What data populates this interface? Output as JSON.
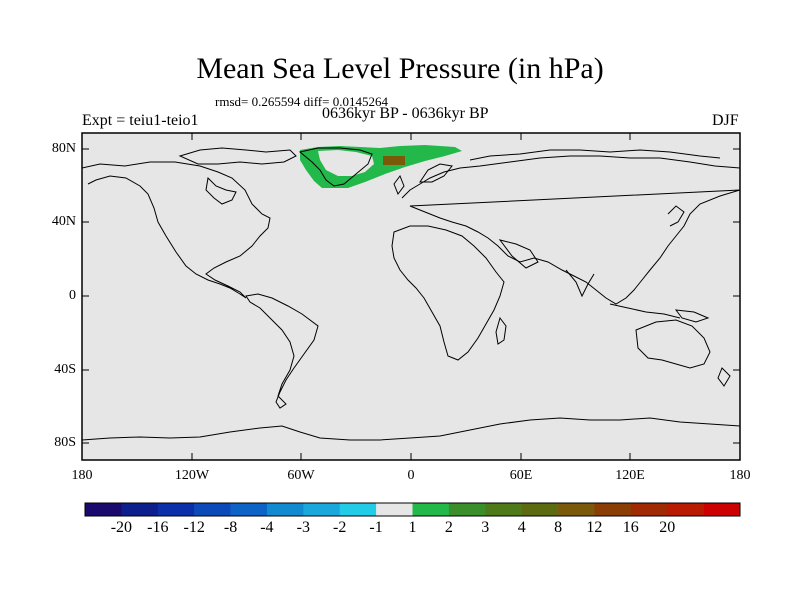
{
  "title": "Mean Sea Level Pressure (in hPa)",
  "stats": "rmsd= 0.265594 diff= 0.0145264",
  "expt": "Expt = teiu1-teio1",
  "period": "0636kyr BP - 0636kyr BP",
  "season": "DJF",
  "lat_labels": [
    "80N",
    "40N",
    "0",
    "40S",
    "80S"
  ],
  "lon_labels": [
    "180",
    "120W",
    "60W",
    "0",
    "60E",
    "120E",
    "180"
  ],
  "colorbar": {
    "colors": [
      "#1a0a6e",
      "#0c1f8c",
      "#0a2fa8",
      "#0b4ab8",
      "#0d64c6",
      "#118ad0",
      "#1aa8dc",
      "#22cce6",
      "#e6e6e6",
      "#22b84a",
      "#3b8f2a",
      "#4f7a1a",
      "#5c6a10",
      "#7a5a0a",
      "#8a3e06",
      "#a02a04",
      "#b81a02",
      "#cc0000"
    ],
    "labels": [
      "-20",
      "-16",
      "-12",
      "-8",
      "-4",
      "-3",
      "-2",
      "-1",
      "1",
      "2",
      "3",
      "4",
      "8",
      "12",
      "16",
      "20"
    ]
  },
  "colors": {
    "background": "#e6e6e6",
    "anomaly_green": "#22b84a",
    "anomaly_brown": "#7a5a0a"
  }
}
